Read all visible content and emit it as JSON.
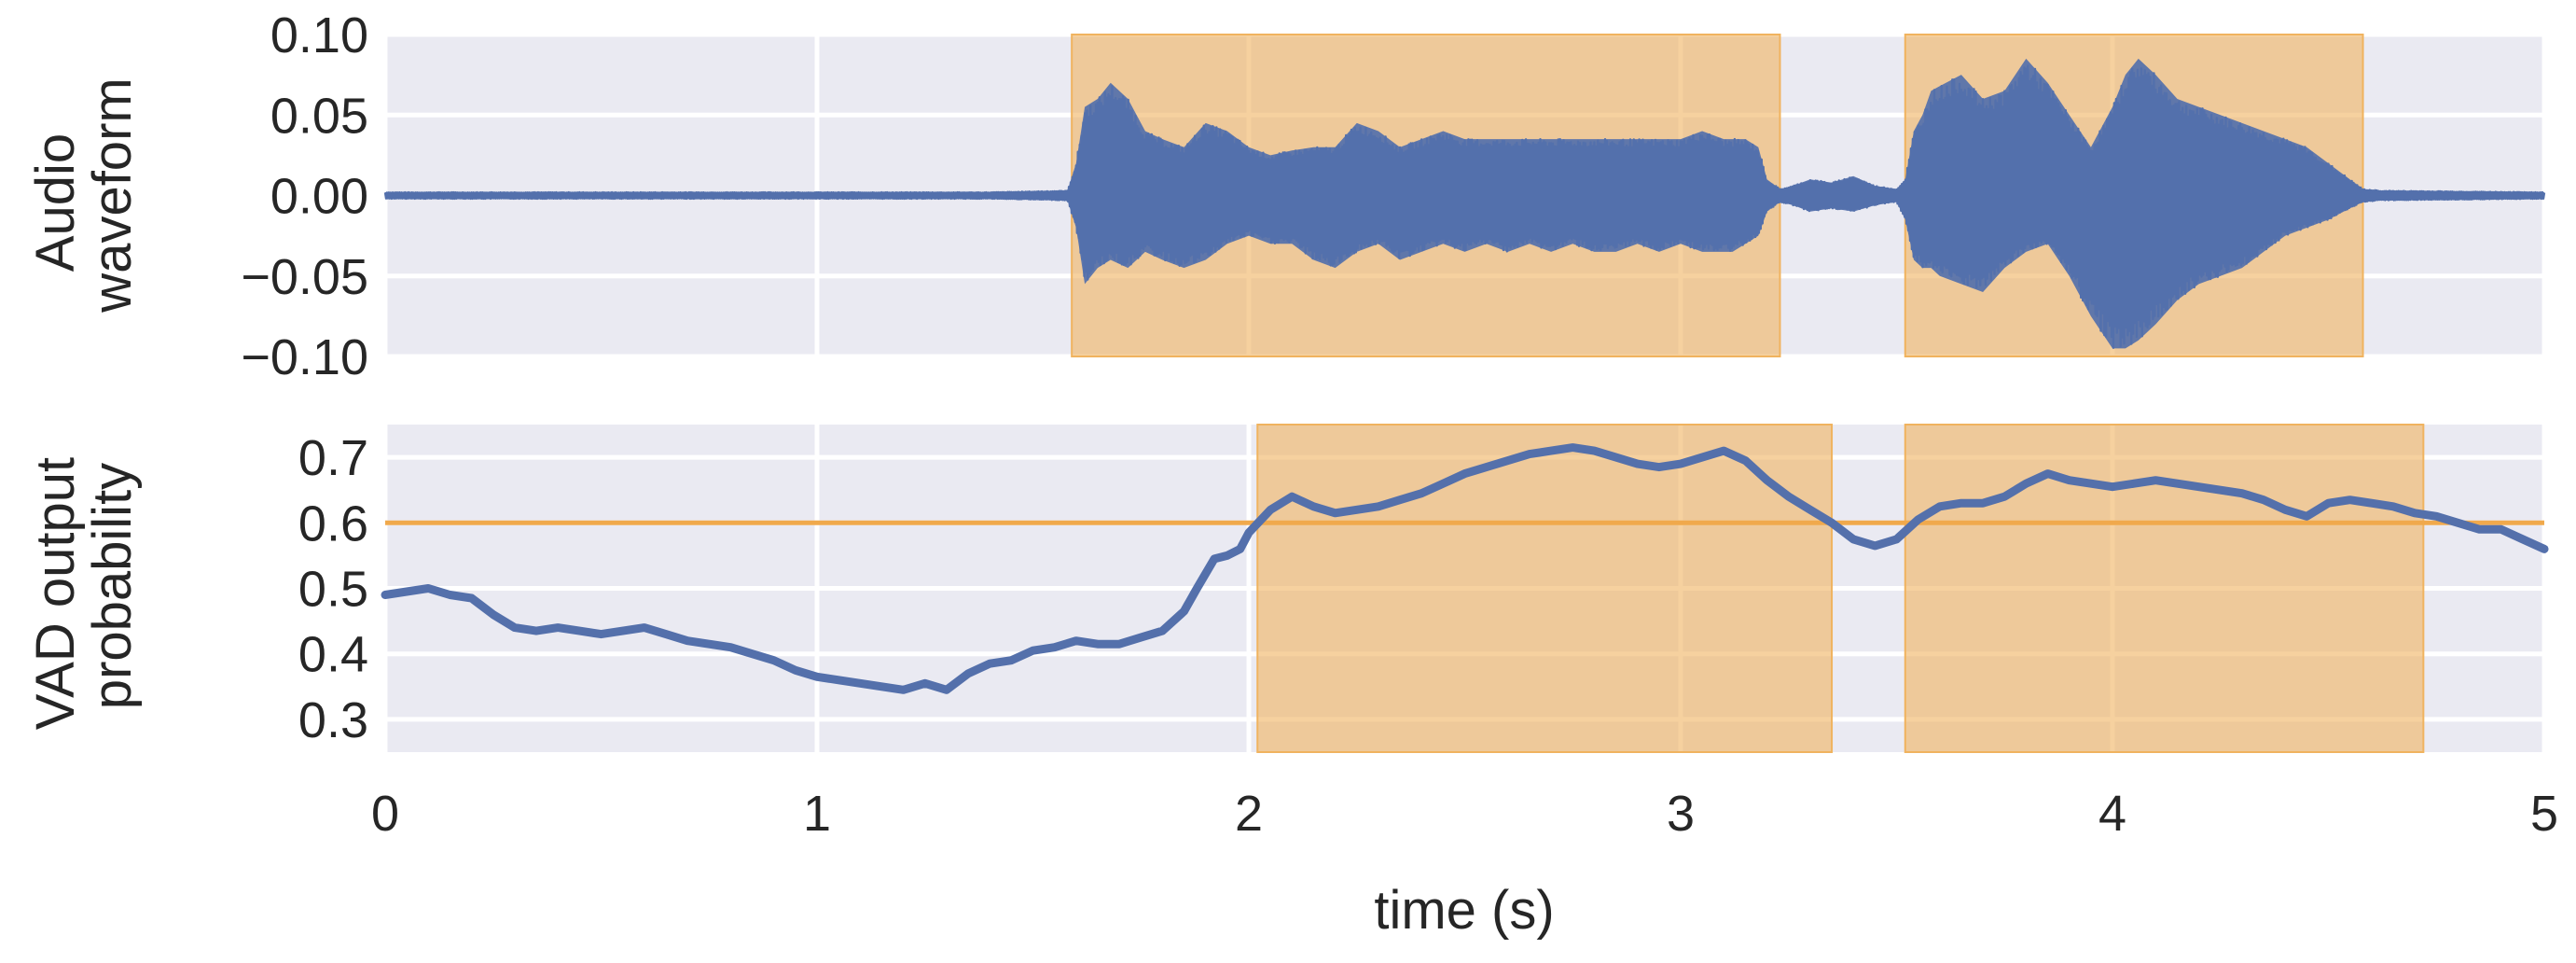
{
  "colors": {
    "background": "#ffffff",
    "panel": "#eaeaf2",
    "grid": "#ffffff",
    "series": "#5470ab",
    "highlight": "#f0b35f",
    "threshold": "#f0a94c",
    "text": "#262626"
  },
  "chart_data": [
    {
      "type": "line",
      "panel": "top",
      "ylabel_lines": [
        "Audio",
        "waveform"
      ],
      "xlim": [
        0,
        5
      ],
      "ylim": [
        -0.1,
        0.1
      ],
      "yticks": [
        0.1,
        0.05,
        0.0,
        -0.05,
        -0.1
      ],
      "ytick_labels": [
        "0.10",
        "0.05",
        "0.00",
        "−0.05",
        "−0.10"
      ],
      "grid": true,
      "highlight_regions": [
        [
          1.59,
          3.23
        ],
        [
          3.52,
          4.58
        ]
      ],
      "envelope": {
        "t": [
          0,
          1.4,
          1.58,
          1.6,
          1.62,
          1.65,
          1.68,
          1.72,
          1.76,
          1.8,
          1.85,
          1.9,
          1.95,
          2.0,
          2.05,
          2.1,
          2.15,
          2.2,
          2.25,
          2.3,
          2.35,
          2.4,
          2.45,
          2.5,
          2.55,
          2.6,
          2.65,
          2.7,
          2.75,
          2.8,
          2.85,
          2.9,
          2.95,
          3.0,
          3.05,
          3.1,
          3.12,
          3.15,
          3.18,
          3.2,
          3.23,
          3.26,
          3.3,
          3.35,
          3.4,
          3.45,
          3.5,
          3.52,
          3.54,
          3.56,
          3.58,
          3.6,
          3.65,
          3.7,
          3.75,
          3.8,
          3.85,
          3.9,
          3.95,
          4.0,
          4.03,
          4.06,
          4.1,
          4.15,
          4.2,
          4.25,
          4.3,
          4.35,
          4.4,
          4.45,
          4.5,
          4.55,
          4.58,
          4.62,
          5.0
        ],
        "upper": [
          0.002,
          0.002,
          0.003,
          0.02,
          0.055,
          0.06,
          0.07,
          0.06,
          0.04,
          0.035,
          0.03,
          0.045,
          0.04,
          0.03,
          0.025,
          0.028,
          0.03,
          0.03,
          0.045,
          0.04,
          0.03,
          0.035,
          0.04,
          0.035,
          0.035,
          0.035,
          0.035,
          0.035,
          0.035,
          0.035,
          0.035,
          0.035,
          0.035,
          0.035,
          0.04,
          0.035,
          0.035,
          0.035,
          0.03,
          0.01,
          0.004,
          0.006,
          0.01,
          0.008,
          0.012,
          0.006,
          0.004,
          0.01,
          0.04,
          0.05,
          0.065,
          0.068,
          0.075,
          0.06,
          0.065,
          0.085,
          0.07,
          0.05,
          0.03,
          0.055,
          0.075,
          0.085,
          0.075,
          0.06,
          0.055,
          0.05,
          0.045,
          0.04,
          0.035,
          0.03,
          0.02,
          0.01,
          0.004,
          0.003,
          0.002
        ],
        "lower": [
          -0.002,
          -0.002,
          -0.003,
          -0.02,
          -0.055,
          -0.045,
          -0.04,
          -0.045,
          -0.035,
          -0.04,
          -0.045,
          -0.04,
          -0.03,
          -0.025,
          -0.03,
          -0.03,
          -0.04,
          -0.045,
          -0.035,
          -0.03,
          -0.04,
          -0.035,
          -0.03,
          -0.035,
          -0.03,
          -0.035,
          -0.03,
          -0.035,
          -0.03,
          -0.035,
          -0.035,
          -0.03,
          -0.035,
          -0.03,
          -0.035,
          -0.035,
          -0.035,
          -0.03,
          -0.025,
          -0.01,
          -0.004,
          -0.006,
          -0.01,
          -0.008,
          -0.01,
          -0.006,
          -0.004,
          -0.015,
          -0.04,
          -0.045,
          -0.045,
          -0.05,
          -0.055,
          -0.06,
          -0.045,
          -0.035,
          -0.03,
          -0.05,
          -0.075,
          -0.095,
          -0.095,
          -0.09,
          -0.08,
          -0.065,
          -0.055,
          -0.05,
          -0.045,
          -0.035,
          -0.025,
          -0.02,
          -0.015,
          -0.008,
          -0.004,
          -0.003,
          -0.002
        ]
      }
    },
    {
      "type": "line",
      "panel": "bottom",
      "ylabel_lines": [
        "VAD output",
        "probability"
      ],
      "xlabel": "time (s)",
      "xlim": [
        0,
        5
      ],
      "ylim": [
        0.25,
        0.75
      ],
      "yticks": [
        0.7,
        0.6,
        0.5,
        0.4,
        0.3
      ],
      "ytick_labels": [
        "0.7",
        "0.6",
        "0.5",
        "0.4",
        "0.3"
      ],
      "xticks": [
        0,
        1,
        2,
        3,
        4,
        5
      ],
      "xtick_labels": [
        "0",
        "1",
        "2",
        "3",
        "4",
        "5"
      ],
      "grid": true,
      "threshold": 0.6,
      "highlight_regions": [
        [
          2.02,
          3.35
        ],
        [
          3.52,
          4.72
        ]
      ],
      "series": [
        {
          "x": [
            0,
            0.05,
            0.1,
            0.15,
            0.2,
            0.25,
            0.3,
            0.35,
            0.4,
            0.45,
            0.5,
            0.55,
            0.6,
            0.65,
            0.7,
            0.75,
            0.8,
            0.85,
            0.9,
            0.95,
            1.0,
            1.05,
            1.1,
            1.15,
            1.2,
            1.25,
            1.3,
            1.35,
            1.4,
            1.45,
            1.5,
            1.55,
            1.6,
            1.65,
            1.7,
            1.75,
            1.8,
            1.85,
            1.88,
            1.92,
            1.95,
            1.98,
            2.0,
            2.05,
            2.1,
            2.15,
            2.2,
            2.25,
            2.3,
            2.35,
            2.4,
            2.45,
            2.5,
            2.55,
            2.6,
            2.65,
            2.7,
            2.75,
            2.8,
            2.85,
            2.9,
            2.95,
            3.0,
            3.05,
            3.1,
            3.15,
            3.2,
            3.25,
            3.3,
            3.35,
            3.4,
            3.45,
            3.5,
            3.55,
            3.6,
            3.65,
            3.7,
            3.75,
            3.8,
            3.85,
            3.9,
            3.95,
            4.0,
            4.05,
            4.1,
            4.15,
            4.2,
            4.25,
            4.3,
            4.35,
            4.4,
            4.45,
            4.5,
            4.55,
            4.6,
            4.65,
            4.7,
            4.75,
            4.8,
            4.85,
            4.9,
            4.95,
            5.0
          ],
          "y": [
            0.49,
            0.495,
            0.5,
            0.49,
            0.485,
            0.46,
            0.44,
            0.435,
            0.44,
            0.435,
            0.43,
            0.435,
            0.44,
            0.43,
            0.42,
            0.415,
            0.41,
            0.4,
            0.39,
            0.375,
            0.365,
            0.36,
            0.355,
            0.35,
            0.345,
            0.355,
            0.345,
            0.37,
            0.385,
            0.39,
            0.405,
            0.41,
            0.42,
            0.415,
            0.415,
            0.425,
            0.435,
            0.465,
            0.5,
            0.545,
            0.55,
            0.56,
            0.585,
            0.62,
            0.64,
            0.625,
            0.615,
            0.62,
            0.625,
            0.635,
            0.645,
            0.66,
            0.675,
            0.685,
            0.695,
            0.705,
            0.71,
            0.715,
            0.71,
            0.7,
            0.69,
            0.685,
            0.69,
            0.7,
            0.71,
            0.695,
            0.665,
            0.64,
            0.62,
            0.6,
            0.575,
            0.565,
            0.575,
            0.605,
            0.625,
            0.63,
            0.63,
            0.64,
            0.66,
            0.675,
            0.665,
            0.66,
            0.655,
            0.66,
            0.665,
            0.66,
            0.655,
            0.65,
            0.645,
            0.635,
            0.62,
            0.61,
            0.63,
            0.635,
            0.63,
            0.625,
            0.615,
            0.61,
            0.6,
            0.59,
            0.59,
            0.575,
            0.56
          ]
        }
      ]
    }
  ]
}
